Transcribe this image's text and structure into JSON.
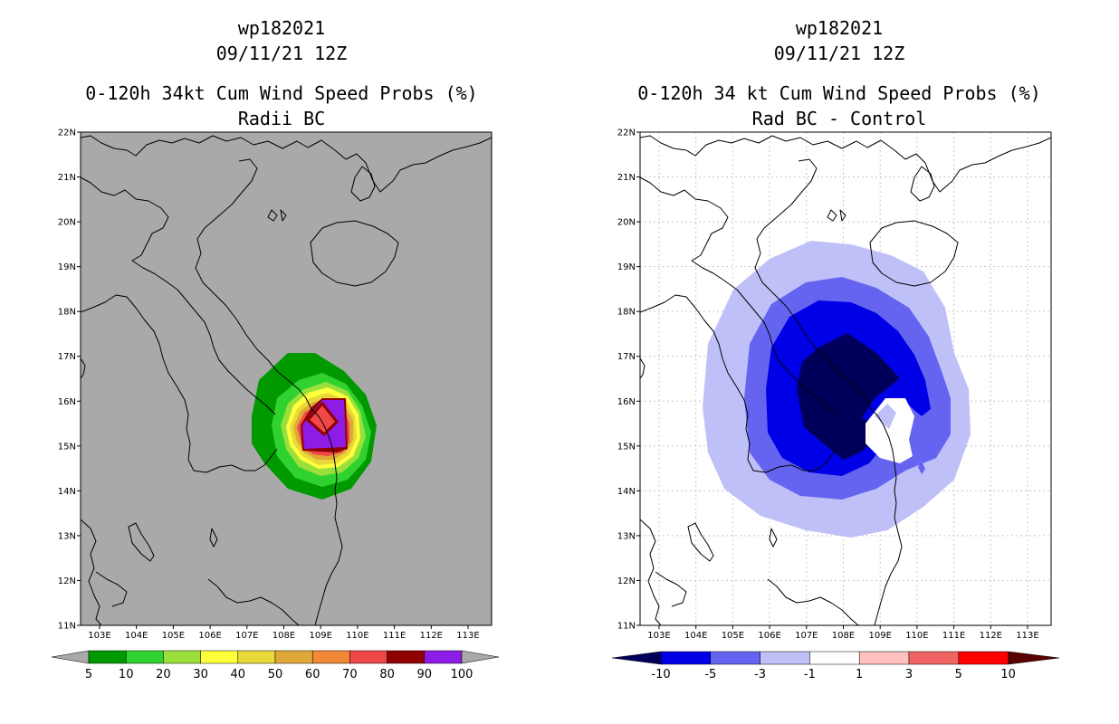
{
  "left_panel": {
    "title_line1": "wp182021",
    "title_line2": "09/11/21 12Z",
    "title_line3": "0-120h 34kt Cum Wind Speed Probs (%)",
    "title_line4": "Radii BC",
    "background_color": "#a9a9a9",
    "colorbar": {
      "labels": [
        "5",
        "10",
        "20",
        "30",
        "40",
        "50",
        "60",
        "70",
        "80",
        "90",
        "100"
      ],
      "colors": [
        "#009a00",
        "#2fd22f",
        "#9be03a",
        "#ffff3c",
        "#e8d838",
        "#e0a838",
        "#f08838",
        "#f04848",
        "#900000",
        "#8c1ce6"
      ]
    }
  },
  "right_panel": {
    "title_line1": "wp182021",
    "title_line2": "09/11/21 12Z",
    "title_line3": "0-120h 34 kt Cum Wind Speed Probs (%)",
    "title_line4": "Rad BC - Control",
    "background_color": "#ffffff",
    "colorbar": {
      "labels": [
        "-10",
        "-5",
        "-3",
        "-1",
        "1",
        "3",
        "5",
        "10"
      ],
      "colors": [
        "#00005a",
        "#0000e6",
        "#6464f0",
        "#c0c0f8",
        "#ffffff",
        "#ffc0c0",
        "#f06464",
        "#ff0000",
        "#5a0000"
      ]
    }
  },
  "axes": {
    "lat_labels": [
      "22N",
      "21N",
      "20N",
      "19N",
      "18N",
      "17N",
      "16N",
      "15N",
      "14N",
      "13N",
      "12N",
      "11N"
    ],
    "lon_labels": [
      "103E",
      "104E",
      "105E",
      "106E",
      "107E",
      "108E",
      "109E",
      "110E",
      "111E",
      "112E",
      "113E"
    ]
  }
}
